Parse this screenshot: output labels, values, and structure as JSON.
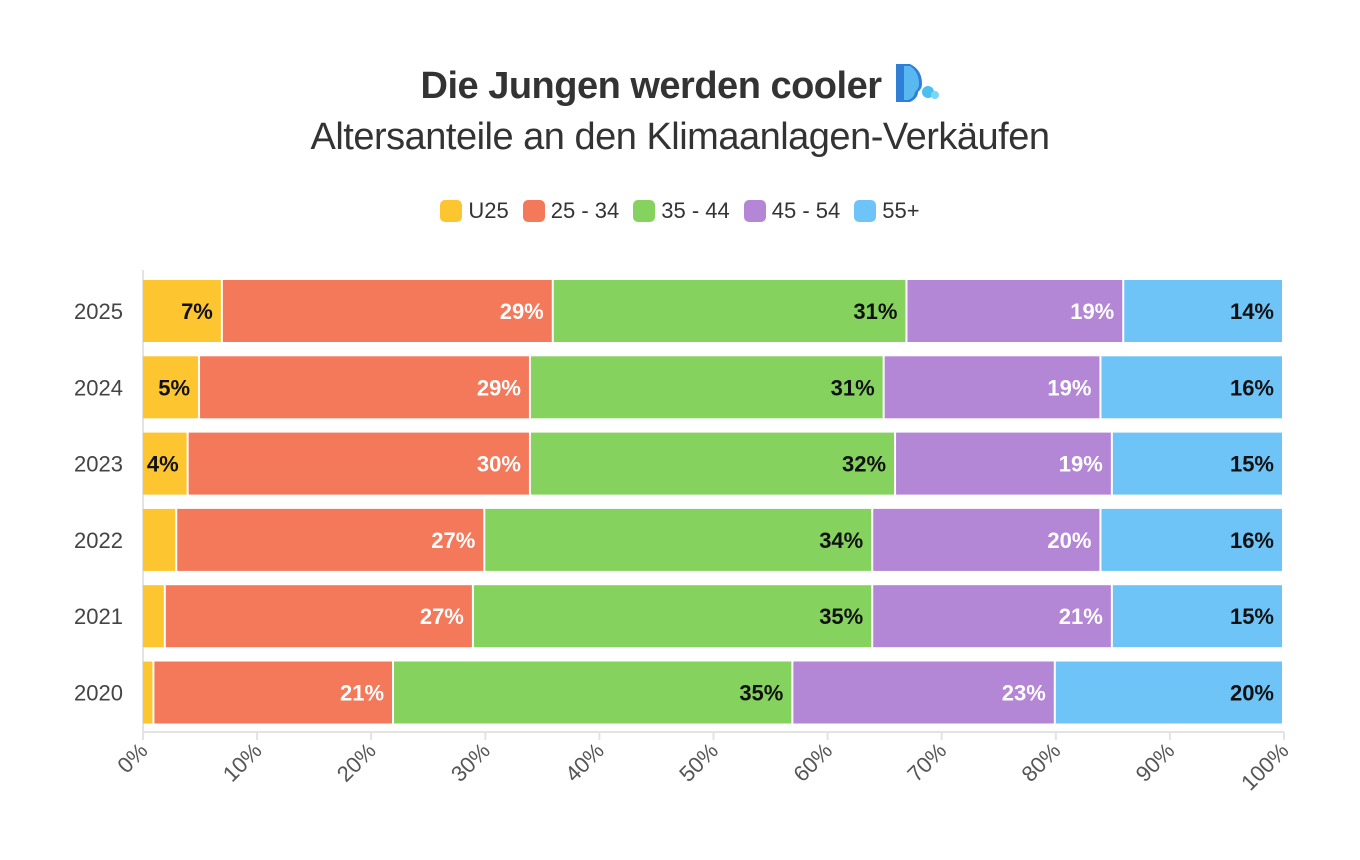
{
  "chart_data": {
    "type": "bar",
    "orientation": "horizontal",
    "stacked": "percent",
    "title": "Die Jungen werden cooler",
    "title_icon": "wind-face-icon",
    "subtitle": "Altersanteile an den Klimaanlagen-Verkäufen",
    "legend_position": "top",
    "categories": [
      "2025",
      "2024",
      "2023",
      "2022",
      "2021",
      "2020"
    ],
    "series": [
      {
        "name": "U25",
        "color": "#FDC52F",
        "label_color": "#111111",
        "values": [
          7,
          5,
          4,
          3,
          2,
          1
        ],
        "labels": [
          "7%",
          "5%",
          "4%",
          "",
          "",
          ""
        ]
      },
      {
        "name": "25 - 34",
        "color": "#F4785A",
        "label_color": "#FFFFFF",
        "values": [
          29,
          29,
          30,
          27,
          27,
          21
        ],
        "labels": [
          "29%",
          "29%",
          "30%",
          "27%",
          "27%",
          "21%"
        ]
      },
      {
        "name": "35 - 44",
        "color": "#86D25F",
        "label_color": "#111111",
        "values": [
          31,
          31,
          32,
          34,
          35,
          35
        ],
        "labels": [
          "31%",
          "31%",
          "32%",
          "34%",
          "35%",
          "35%"
        ]
      },
      {
        "name": "45 - 54",
        "color": "#B386D6",
        "label_color": "#FFFFFF",
        "values": [
          19,
          19,
          19,
          20,
          21,
          23
        ],
        "labels": [
          "19%",
          "19%",
          "19%",
          "20%",
          "21%",
          "23%"
        ]
      },
      {
        "name": "55+",
        "color": "#6EC4F7",
        "label_color": "#111111",
        "values": [
          14,
          16,
          15,
          16,
          15,
          20
        ],
        "labels": [
          "14%",
          "16%",
          "15%",
          "16%",
          "15%",
          "20%"
        ]
      }
    ],
    "xlim": [
      0,
      100
    ],
    "xticks": [
      "0%",
      "10%",
      "20%",
      "30%",
      "40%",
      "50%",
      "60%",
      "70%",
      "80%",
      "90%",
      "100%"
    ],
    "grid": false
  }
}
